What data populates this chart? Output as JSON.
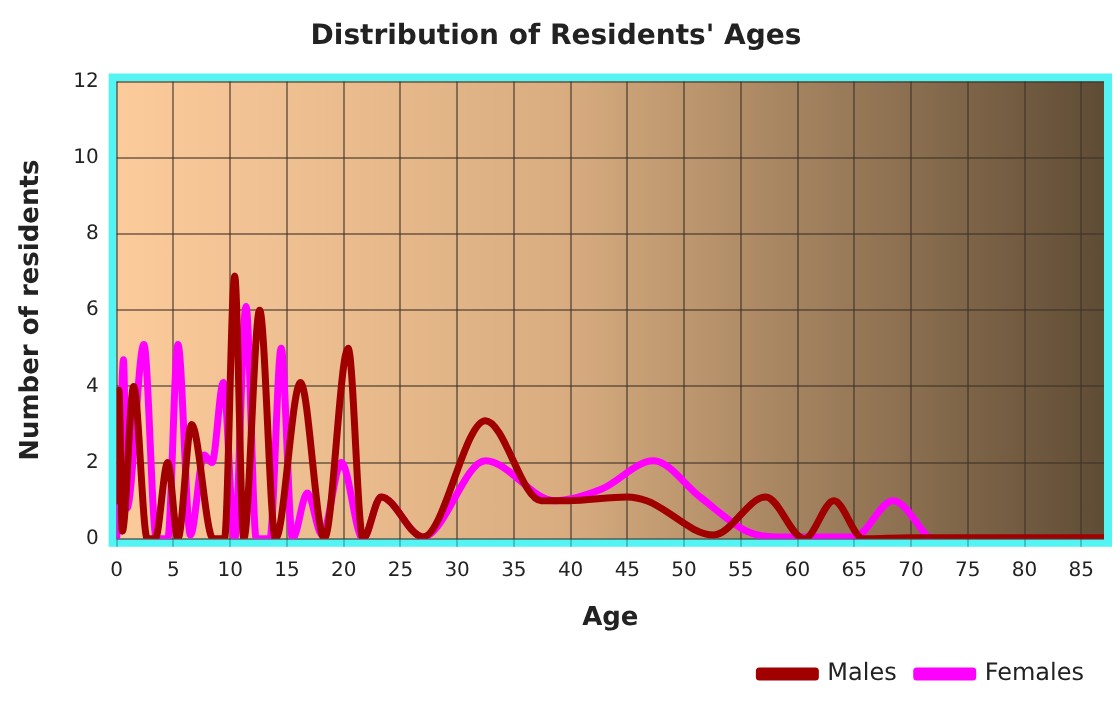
{
  "chart_data": {
    "type": "line",
    "title": "Distribution of Residents' Ages",
    "xlabel": "Age",
    "ylabel": "Number of residents",
    "xlim": [
      0,
      87
    ],
    "xticks": [
      0,
      5,
      10,
      15,
      20,
      25,
      30,
      35,
      40,
      45,
      50,
      55,
      60,
      65,
      70,
      75,
      80,
      85
    ],
    "ylim": [
      0,
      12
    ],
    "yticks": [
      0,
      2,
      4,
      6,
      8,
      10,
      12
    ],
    "grid": true,
    "legend": "bottom right",
    "marker": "none",
    "line_style": "solid",
    "series": [
      {
        "name": "Males",
        "color": "#a00000",
        "x": [
          0,
          0.2,
          0.5,
          1.5,
          2.7,
          3.4,
          4.5,
          5.4,
          6.6,
          8.5,
          9.5,
          10.4,
          11.2,
          12.6,
          14,
          16.2,
          18.3,
          20.4,
          21.7,
          23.3,
          27,
          32.5,
          37.4,
          39.8,
          45,
          46.7,
          52.6,
          57.2,
          60.6,
          63.2,
          65.8,
          70,
          75,
          80,
          87
        ],
        "values": [
          1,
          3.9,
          0.2,
          4,
          0,
          0,
          2,
          0,
          3,
          0,
          0,
          6.9,
          0,
          6,
          0,
          4.1,
          0,
          5,
          0,
          1.1,
          0.05,
          3.1,
          1,
          1,
          1.1,
          1,
          0.1,
          1.1,
          0,
          1,
          0,
          0.03,
          0.03,
          0.03,
          0.03
        ]
      },
      {
        "name": "Females",
        "color": "#ff00ff",
        "x": [
          0,
          0.2,
          0.6,
          0.9,
          2.4,
          3.5,
          4.5,
          5.4,
          6.5,
          7.7,
          8.4,
          9.4,
          10.4,
          11.4,
          12.3,
          13.5,
          14.5,
          15.5,
          16.8,
          18.1,
          19.8,
          21.7,
          23.3,
          27,
          32.5,
          38.6,
          42.7,
          47.3,
          51.4,
          55.5,
          58,
          65,
          68.4,
          71.6
        ],
        "values": [
          0,
          1,
          4.7,
          0.8,
          5.1,
          0,
          0,
          5.1,
          0.1,
          2.2,
          2,
          4.1,
          0,
          6.1,
          0,
          0,
          5,
          0,
          1.2,
          0.1,
          2,
          0,
          1.1,
          0.05,
          2.05,
          1,
          1.3,
          2.05,
          1.1,
          0.2,
          0.05,
          0.05,
          1,
          0
        ]
      }
    ]
  }
}
